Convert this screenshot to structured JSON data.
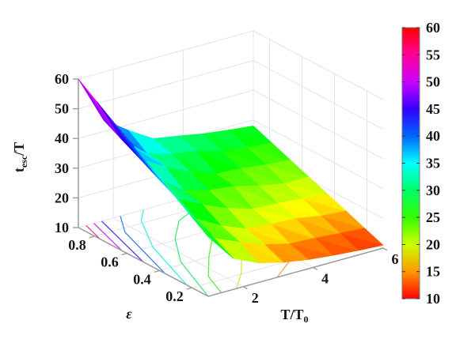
{
  "figure": {
    "background": "#ffffff",
    "grid_color": "#e4e4e4",
    "axis_color": "#9b9b9b",
    "text_color": "#151515"
  },
  "axes": {
    "z_title": {
      "base": "t",
      "sub": "esc",
      "rest": "/T"
    },
    "x_title": {
      "base": "T/T",
      "sub": "0"
    },
    "y_title": "ε",
    "z_ticks": [
      10,
      20,
      30,
      40,
      50,
      60
    ],
    "y_ticks": [
      0.8,
      0.6,
      0.4,
      0.2
    ],
    "x_ticks": [
      2,
      4,
      6
    ]
  },
  "colorbar": {
    "min": 10,
    "max": 60,
    "ticks": [
      60,
      55,
      50,
      45,
      40,
      35,
      30,
      25,
      20,
      15,
      10
    ],
    "colormap": "hsv",
    "top_color": "#ff0000",
    "bottom_color": "#ff0000"
  },
  "chart_data": {
    "type": "surface",
    "title": "",
    "xlabel": "T/T0",
    "ylabel": "epsilon",
    "zlabel": "t_esc/T",
    "x_range": [
      1,
      6
    ],
    "epsilon_range": [
      0.1,
      0.9
    ],
    "z_range": [
      10,
      60
    ],
    "colormap": "hsv",
    "legend_position": "right-colorbar",
    "grid": true,
    "x": [
      1.0,
      1.71,
      2.43,
      3.14,
      3.86,
      4.57,
      5.29,
      6.0
    ],
    "epsilon": [
      0.1,
      0.214,
      0.329,
      0.443,
      0.557,
      0.671,
      0.786,
      0.9
    ],
    "values": [
      [
        30.0,
        20.5,
        16.6,
        14.5,
        13.1,
        12.2,
        11.5,
        11.0
      ],
      [
        34.3,
        23.9,
        20.3,
        17.2,
        15.1,
        14.7,
        14.0,
        13.4
      ],
      [
        38.6,
        27.2,
        22.5,
        19.2,
        18.4,
        18.0,
        16.5,
        15.9
      ],
      [
        42.9,
        30.6,
        26.3,
        22.8,
        20.2,
        19.8,
        19.0,
        18.3
      ],
      [
        47.1,
        33.9,
        27.7,
        25.5,
        24.6,
        22.4,
        20.9,
        20.7
      ],
      [
        51.4,
        37.3,
        32.4,
        28.3,
        25.4,
        24.9,
        23.9,
        23.1
      ],
      [
        55.7,
        40.6,
        33.6,
        31.1,
        29.8,
        27.5,
        26.4,
        25.6
      ],
      [
        60.0,
        44.0,
        38.1,
        33.0,
        31.6,
        30.0,
        28.9,
        28.0
      ]
    ],
    "contour_levels": [
      15,
      20,
      25,
      30,
      35,
      40,
      45,
      50,
      55
    ]
  }
}
